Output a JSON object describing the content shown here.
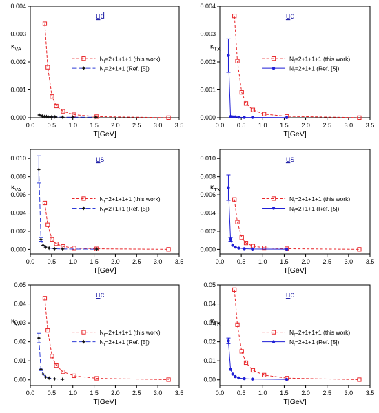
{
  "colors": {
    "this_work": "#e8262a",
    "ref_va": "#2e3cd8",
    "ref_tx": "#1f1fd6",
    "axis": "#000000",
    "title": "#2323a8"
  },
  "chart_data": [
    {
      "type": "line",
      "title": "ud",
      "xlabel": "T[GeV]",
      "ylabel": "κ_VA",
      "xlim": [
        0,
        3.5
      ],
      "ylim": [
        0,
        0.004
      ],
      "xticks": [
        "0.0",
        "0.5",
        "1.0",
        "1.5",
        "2.0",
        "2.5",
        "3.0",
        "3.5"
      ],
      "yticks": [
        "0.000",
        "0.001",
        "0.002",
        "0.003",
        "0.004"
      ],
      "legend_position": "center-right",
      "grid": false,
      "series": [
        {
          "name": "Nf=2+1+1+1 (this work)",
          "style": "this_work",
          "x": [
            0.34,
            0.41,
            0.51,
            0.61,
            0.77,
            1.03,
            1.56,
            3.25
          ],
          "y": [
            0.00337,
            0.00181,
            0.00076,
            0.00042,
            0.00023,
            0.00011,
            4e-05,
            3e-06
          ]
        },
        {
          "name": "Nf=2+1+1 (Ref. [5])",
          "style": "ref_va",
          "x": [
            0.21,
            0.25,
            0.28,
            0.33,
            0.38,
            0.42,
            0.5,
            0.58,
            0.76,
            1.0,
            1.54
          ],
          "y": [
            0.0001,
            7e-05,
            6e-05,
            4e-05,
            4e-05,
            3e-05,
            3e-05,
            3e-05,
            2e-05,
            2e-05,
            2e-05
          ],
          "err": [
            0,
            0,
            0,
            0,
            0,
            0,
            0,
            0,
            0,
            0,
            0
          ]
        }
      ]
    },
    {
      "type": "line",
      "title": "ud",
      "xlabel": "T[GeV]",
      "ylabel": "κ_TX",
      "xlim": [
        0,
        3.5
      ],
      "ylim": [
        0,
        0.004
      ],
      "xticks": [
        "0.0",
        "0.5",
        "1.0",
        "1.5",
        "2.0",
        "2.5",
        "3.0",
        "3.5"
      ],
      "yticks": [
        "0.000",
        "0.001",
        "0.002",
        "0.003",
        "0.004"
      ],
      "legend_position": "center-right",
      "grid": false,
      "series": [
        {
          "name": "Nf=2+1+1+1 (this work)",
          "style": "this_work",
          "x": [
            0.34,
            0.41,
            0.51,
            0.61,
            0.77,
            1.03,
            1.56,
            3.25
          ],
          "y": [
            0.00365,
            0.00203,
            0.00091,
            0.00051,
            0.00028,
            0.00013,
            5e-05,
            3e-06
          ]
        },
        {
          "name": "Nf=2+1+1 (Ref. [5])",
          "style": "ref_tx",
          "x": [
            0.2,
            0.25,
            0.3,
            0.36,
            0.44,
            0.57,
            0.76,
            1.56
          ],
          "y": [
            0.00223,
            4e-05,
            3e-05,
            3e-05,
            2e-05,
            1e-05,
            1e-05,
            5e-06
          ],
          "err": [
            0.0006,
            0,
            0,
            0,
            0,
            0,
            0,
            0
          ]
        }
      ]
    },
    {
      "type": "line",
      "title": "us",
      "xlabel": "T[GeV]",
      "ylabel": "κ_VA",
      "xlim": [
        0,
        3.5
      ],
      "ylim": [
        -0.0005,
        0.011
      ],
      "xticks": [
        "0.0",
        "0.5",
        "1.0",
        "1.5",
        "2.0",
        "2.5",
        "3.0",
        "3.5"
      ],
      "yticks": [
        "0.000",
        "0.002",
        "0.004",
        "0.006",
        "0.008",
        "0.010"
      ],
      "legend_position": "center-right",
      "grid": false,
      "series": [
        {
          "name": "Nf=2+1+1+1 (this work)",
          "style": "this_work",
          "x": [
            0.34,
            0.41,
            0.51,
            0.61,
            0.77,
            1.03,
            1.56,
            3.25
          ],
          "y": [
            0.0051,
            0.0027,
            0.0011,
            0.00062,
            0.00032,
            0.00015,
            6e-05,
            5e-06
          ]
        },
        {
          "name": "Nf=2+1+1 (Ref. [5])",
          "style": "ref_va",
          "x": [
            0.2,
            0.25,
            0.3,
            0.36,
            0.44,
            0.57,
            0.76,
            1.56
          ],
          "y": [
            0.0088,
            0.0011,
            0.00045,
            0.00025,
            0.00014,
            7e-05,
            4e-05,
            2e-05
          ],
          "err": [
            0.0015,
            0.0002,
            0,
            0,
            0,
            0,
            0,
            0
          ]
        }
      ]
    },
    {
      "type": "line",
      "title": "us",
      "xlabel": "T[GeV]",
      "ylabel": "κ_TX",
      "xlim": [
        0,
        3.5
      ],
      "ylim": [
        -0.0005,
        0.011
      ],
      "xticks": [
        "0.0",
        "0.5",
        "1.0",
        "1.5",
        "2.0",
        "2.5",
        "3.0",
        "3.5"
      ],
      "yticks": [
        "0.000",
        "0.002",
        "0.004",
        "0.006",
        "0.008",
        "0.010"
      ],
      "legend_position": "center-right",
      "grid": false,
      "series": [
        {
          "name": "Nf=2+1+1+1 (this work)",
          "style": "this_work",
          "x": [
            0.34,
            0.41,
            0.51,
            0.61,
            0.77,
            1.03,
            1.56,
            3.25
          ],
          "y": [
            0.0055,
            0.003,
            0.0013,
            0.0007,
            0.00036,
            0.00017,
            7e-05,
            5e-06
          ]
        },
        {
          "name": "Nf=2+1+1 (Ref. [5])",
          "style": "ref_tx",
          "x": [
            0.2,
            0.25,
            0.3,
            0.36,
            0.44,
            0.57,
            0.76,
            1.56
          ],
          "y": [
            0.0068,
            0.0011,
            0.00045,
            0.00025,
            0.00014,
            7e-05,
            4e-05,
            2e-05
          ],
          "err": [
            0.0014,
            0.0002,
            0,
            0,
            0,
            0,
            0,
            0
          ]
        }
      ]
    },
    {
      "type": "line",
      "title": "uc",
      "xlabel": "T[GeV]",
      "ylabel": "κ_VA",
      "xlim": [
        0,
        3.5
      ],
      "ylim": [
        -0.003,
        0.05
      ],
      "xticks": [
        "0.0",
        "0.5",
        "1.0",
        "1.5",
        "2.0",
        "2.5",
        "3.0",
        "3.5"
      ],
      "yticks": [
        "0.00",
        "0.01",
        "0.02",
        "0.03",
        "0.04",
        "0.05"
      ],
      "legend_position": "center-right",
      "grid": false,
      "series": [
        {
          "name": "Nf=2+1+1+1 (this work)",
          "style": "this_work",
          "x": [
            0.34,
            0.41,
            0.51,
            0.61,
            0.77,
            1.03,
            1.56,
            3.25
          ],
          "y": [
            0.043,
            0.026,
            0.0125,
            0.0075,
            0.0042,
            0.0021,
            0.0008,
            0.0001
          ]
        },
        {
          "name": "Nf=2+1+1 (Ref. [5])",
          "style": "ref_va",
          "x": [
            0.2,
            0.25,
            0.3,
            0.36,
            0.44,
            0.57,
            0.76
          ],
          "y": [
            0.022,
            0.0055,
            0.003,
            0.0015,
            0.0009,
            0.0005,
            0.0003
          ],
          "err": [
            0.0025,
            0.0006,
            0,
            0,
            0,
            0,
            0
          ]
        }
      ]
    },
    {
      "type": "line",
      "title": "uc",
      "xlabel": "T[GeV]",
      "ylabel": "κ_TX",
      "xlim": [
        0,
        3.5
      ],
      "ylim": [
        -0.003,
        0.05
      ],
      "xticks": [
        "0.0",
        "0.5",
        "1.0",
        "1.5",
        "2.0",
        "2.5",
        "3.0",
        "3.5"
      ],
      "yticks": [
        "0.00",
        "0.01",
        "0.02",
        "0.03",
        "0.04",
        "0.05"
      ],
      "legend_position": "center-right",
      "grid": false,
      "series": [
        {
          "name": "Nf=2+1+1+1 (this work)",
          "style": "this_work",
          "x": [
            0.34,
            0.41,
            0.51,
            0.61,
            0.77,
            1.03,
            1.56,
            3.25
          ],
          "y": [
            0.0475,
            0.029,
            0.015,
            0.009,
            0.005,
            0.0025,
            0.0009,
            0.0001
          ]
        },
        {
          "name": "Nf=2+1+1 (Ref. [5])",
          "style": "ref_tx",
          "x": [
            0.2,
            0.25,
            0.3,
            0.36,
            0.44,
            0.57,
            0.76,
            1.56
          ],
          "y": [
            0.0205,
            0.0055,
            0.003,
            0.0017,
            0.001,
            0.0006,
            0.0004,
            0.0002
          ],
          "err": [
            0.0015,
            0,
            0,
            0,
            0,
            0,
            0,
            0
          ]
        }
      ]
    }
  ]
}
